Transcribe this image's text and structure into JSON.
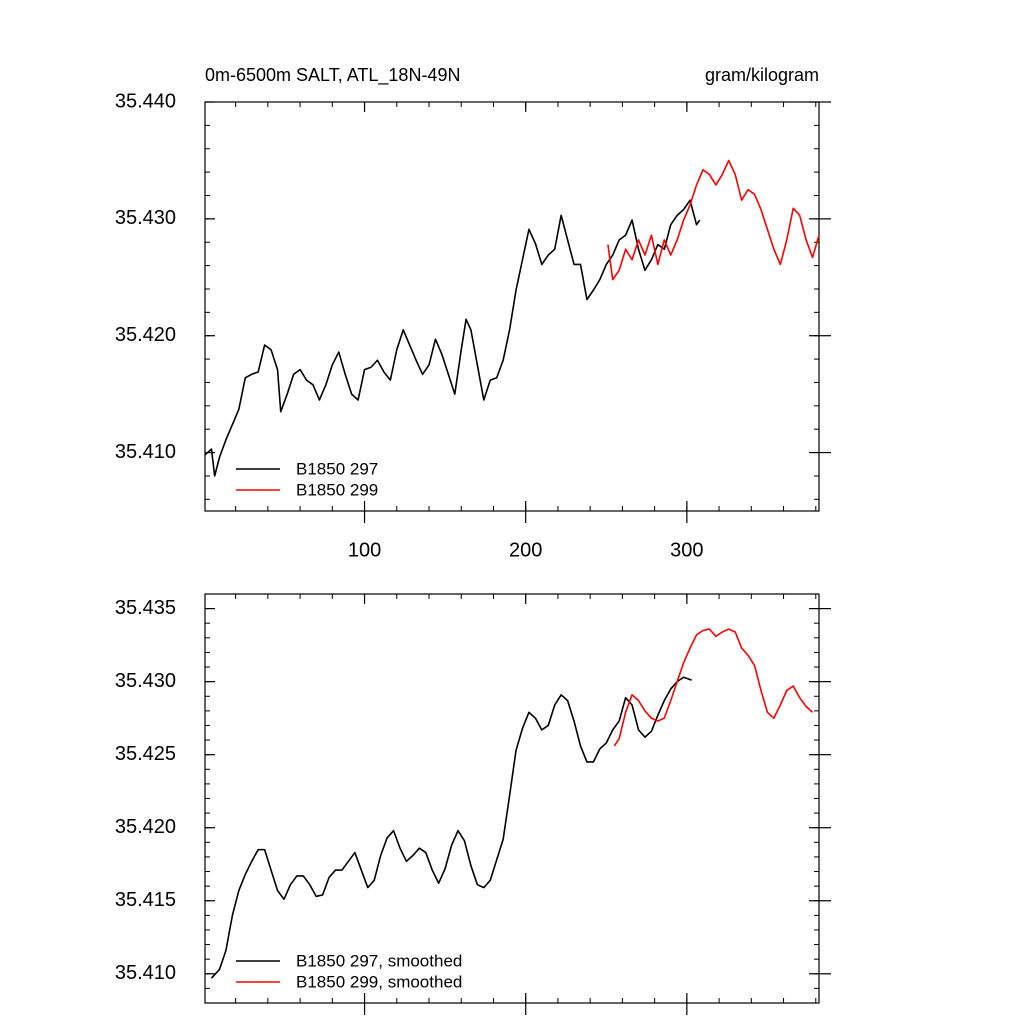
{
  "chart_data": [
    {
      "type": "line",
      "title": "0m-6500m SALT, ATL_18N-49N",
      "units": "gram/kilogram",
      "xlim": [
        1,
        382
      ],
      "xticks": [
        100,
        200,
        300
      ],
      "ylim": [
        35.405,
        35.44
      ],
      "yticks": [
        {
          "value": 35.41,
          "label": "35.410"
        },
        {
          "value": 35.42,
          "label": "35.420"
        },
        {
          "value": 35.43,
          "label": "35.430"
        },
        {
          "value": 35.44,
          "label": "35.440"
        }
      ],
      "legend": "lower left",
      "series": [
        {
          "name": "B1850 297",
          "color": "#000000",
          "x": [
            1,
            5,
            7,
            10,
            14,
            18,
            22,
            26,
            30,
            34,
            38,
            42,
            46,
            48,
            52,
            56,
            60,
            64,
            68,
            72,
            76,
            80,
            84,
            88,
            92,
            96,
            100,
            104,
            108,
            112,
            116,
            120,
            124,
            128,
            132,
            136,
            140,
            144,
            148,
            152,
            156,
            160,
            163,
            166,
            170,
            174,
            178,
            182,
            186,
            190,
            194,
            198,
            202,
            206,
            210,
            214,
            218,
            222,
            226,
            230,
            234,
            238,
            242,
            246,
            250,
            254,
            258,
            262,
            266,
            270,
            274,
            278,
            282,
            286,
            290,
            294,
            298,
            302,
            306,
            308
          ],
          "values": [
            35.4098,
            35.4103,
            35.408,
            35.4096,
            35.4111,
            35.4124,
            35.4137,
            35.4164,
            35.4167,
            35.4169,
            35.4192,
            35.4188,
            35.4171,
            35.4135,
            35.415,
            35.4167,
            35.4171,
            35.4162,
            35.4158,
            35.4145,
            35.4158,
            35.4175,
            35.4186,
            35.4167,
            35.415,
            35.4145,
            35.4171,
            35.4173,
            35.4179,
            35.4169,
            35.4162,
            35.4188,
            35.4205,
            35.4192,
            35.4179,
            35.4167,
            35.4175,
            35.4197,
            35.4184,
            35.4167,
            35.415,
            35.4188,
            35.4214,
            35.4205,
            35.4175,
            35.4145,
            35.4162,
            35.4164,
            35.4179,
            35.4205,
            35.4239,
            35.4265,
            35.4291,
            35.4279,
            35.4261,
            35.4269,
            35.4274,
            35.4303,
            35.4282,
            35.4261,
            35.4261,
            35.4231,
            35.4239,
            35.4248,
            35.4261,
            35.4269,
            35.4282,
            35.4286,
            35.4299,
            35.4274,
            35.4256,
            35.4265,
            35.4278,
            35.4274,
            35.4295,
            35.4303,
            35.4308,
            35.4316,
            35.4295,
            35.4299
          ]
        },
        {
          "name": "B1850 299",
          "color": "#ff0000",
          "x": [
            251,
            254,
            258,
            262,
            266,
            270,
            274,
            278,
            282,
            286,
            290,
            294,
            298,
            302,
            306,
            310,
            314,
            318,
            322,
            326,
            330,
            334,
            338,
            342,
            346,
            350,
            354,
            358,
            362,
            366,
            370,
            374,
            378,
            382
          ],
          "values": [
            35.4278,
            35.4248,
            35.4256,
            35.4274,
            35.4265,
            35.4282,
            35.4269,
            35.4286,
            35.4261,
            35.4282,
            35.4269,
            35.4282,
            35.4299,
            35.4312,
            35.4329,
            35.4342,
            35.4338,
            35.4329,
            35.4338,
            35.435,
            35.4338,
            35.4316,
            35.4325,
            35.4321,
            35.4308,
            35.4291,
            35.4274,
            35.4261,
            35.4282,
            35.4309,
            35.4303,
            35.4282,
            35.4267,
            35.4286
          ]
        }
      ]
    },
    {
      "type": "line",
      "xlim": [
        1,
        382
      ],
      "xticks": [
        100,
        200,
        300
      ],
      "ylim": [
        35.408,
        35.436
      ],
      "yticks": [
        {
          "value": 35.41,
          "label": "35.410"
        },
        35.415,
        {
          "value": 35.42,
          "label": "35.420"
        },
        35.425,
        {
          "value": 35.43,
          "label": "35.430"
        },
        35.435
      ],
      "legend": "lower left",
      "series": [
        {
          "name": "B1850 297, smoothed",
          "color": "#000000",
          "x": [
            5,
            10,
            14,
            18,
            22,
            26,
            30,
            34,
            38,
            42,
            46,
            50,
            54,
            58,
            62,
            66,
            70,
            74,
            78,
            82,
            86,
            90,
            94,
            98,
            102,
            106,
            110,
            114,
            118,
            122,
            126,
            130,
            134,
            138,
            142,
            146,
            150,
            154,
            158,
            162,
            166,
            170,
            174,
            178,
            182,
            186,
            190,
            194,
            198,
            202,
            206,
            210,
            214,
            218,
            222,
            226,
            230,
            234,
            238,
            242,
            246,
            250,
            254,
            258,
            262,
            266,
            270,
            274,
            278,
            282,
            286,
            290,
            294,
            298,
            303
          ],
          "values": [
            35.4097,
            35.4103,
            35.4116,
            35.414,
            35.4157,
            35.4168,
            35.4177,
            35.4185,
            35.4185,
            35.4171,
            35.4157,
            35.4151,
            35.4161,
            35.4167,
            35.4167,
            35.4161,
            35.4153,
            35.4154,
            35.4166,
            35.4171,
            35.4171,
            35.4177,
            35.4183,
            35.4171,
            35.4159,
            35.4164,
            35.4181,
            35.4193,
            35.4198,
            35.4186,
            35.4177,
            35.4181,
            35.4186,
            35.4183,
            35.4171,
            35.4162,
            35.4172,
            35.4188,
            35.4198,
            35.4191,
            35.4174,
            35.4161,
            35.4159,
            35.4164,
            35.4178,
            35.4192,
            35.4222,
            35.4253,
            35.4268,
            35.4279,
            35.4275,
            35.4267,
            35.427,
            35.4284,
            35.4291,
            35.4287,
            35.4273,
            35.4256,
            35.4245,
            35.4245,
            35.4254,
            35.4258,
            35.4267,
            35.4273,
            35.4289,
            35.4284,
            35.4267,
            35.4262,
            35.4266,
            35.4277,
            35.4287,
            35.4295,
            35.43,
            35.4303,
            35.4301
          ]
        },
        {
          "name": "B1850 299, smoothed",
          "color": "#ff0000",
          "x": [
            255,
            258,
            262,
            266,
            270,
            274,
            278,
            282,
            286,
            290,
            294,
            298,
            302,
            306,
            310,
            314,
            318,
            322,
            326,
            330,
            334,
            338,
            342,
            346,
            350,
            354,
            358,
            362,
            366,
            370,
            374,
            378
          ],
          "values": [
            35.4256,
            35.4261,
            35.4279,
            35.4291,
            35.4287,
            35.428,
            35.4275,
            35.4273,
            35.4275,
            35.4287,
            35.43,
            35.4313,
            35.4323,
            35.4332,
            35.4335,
            35.4336,
            35.4331,
            35.4334,
            35.4336,
            35.4334,
            35.4323,
            35.4318,
            35.4311,
            35.4294,
            35.4279,
            35.4275,
            35.4284,
            35.4294,
            35.4297,
            35.4289,
            35.4283,
            35.4279
          ]
        }
      ]
    }
  ]
}
